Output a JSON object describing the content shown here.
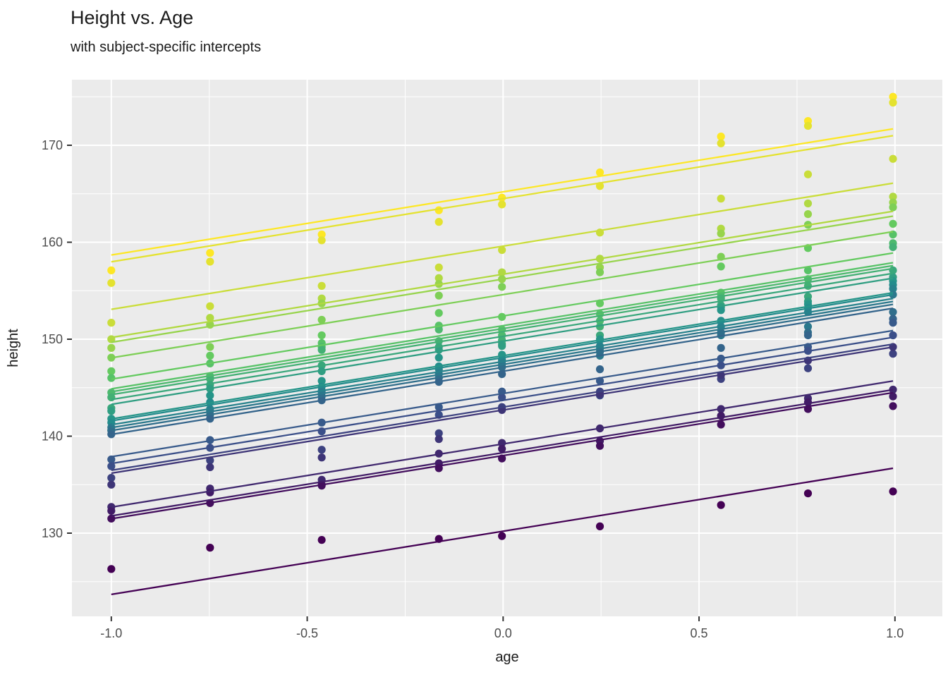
{
  "header": {
    "title": "Height vs. Age",
    "subtitle": "with subject-specific intercepts"
  },
  "panel": {
    "bg_color": "#EBEBEB",
    "grid_color": "#FFFFFF",
    "tick_color": "#333333",
    "tick_label_color": "#4D4D4D"
  },
  "chart_data": {
    "type": "scatter",
    "title": "Height vs. Age",
    "subtitle": "with subject-specific intercepts",
    "xlabel": "age",
    "ylabel": "height",
    "x_tick_labels": [
      "-1.0",
      "-0.5",
      "0.0",
      "0.5",
      "1.0"
    ],
    "x_tick_values": [
      -1.0,
      -0.5,
      0.0,
      0.5,
      1.0
    ],
    "y_tick_labels": [
      "130",
      "140",
      "150",
      "160",
      "170"
    ],
    "y_tick_values": [
      130,
      140,
      150,
      160,
      170
    ],
    "y_minor_values": [
      125,
      135,
      145,
      155,
      165,
      175
    ],
    "x_minor_values": [
      -0.75,
      -0.25,
      0.25,
      0.75
    ],
    "xlim": [
      -1.1,
      1.121
    ],
    "ylim": [
      121.4,
      176.8
    ],
    "grid": true,
    "legend": "none",
    "common_slope": 6.52,
    "line_age_range": [
      -1.0,
      0.995
    ],
    "ages": [
      -1.0,
      -0.748,
      -0.463,
      -0.164,
      -0.003,
      0.247,
      0.556,
      0.778,
      0.995
    ],
    "subjects": [
      {
        "id": 1,
        "color": "#FDE725",
        "intercept": 165.2,
        "heights": [
          157.1,
          158.9,
          160.8,
          163.3,
          164.6,
          167.2,
          170.9,
          172.5,
          175.0
        ]
      },
      {
        "id": 2,
        "color": "#E4E22F",
        "intercept": 164.5,
        "heights": [
          155.8,
          158.0,
          160.2,
          162.1,
          163.9,
          165.8,
          170.2,
          172.0,
          174.4
        ]
      },
      {
        "id": 3,
        "color": "#CADD39",
        "intercept": 159.6,
        "heights": [
          151.7,
          153.4,
          155.5,
          157.4,
          159.2,
          161.0,
          164.5,
          167.0,
          168.6
        ]
      },
      {
        "id": 4,
        "color": "#B1D942",
        "intercept": 156.7,
        "heights": [
          150.0,
          152.2,
          154.2,
          156.3,
          156.9,
          158.3,
          161.4,
          164.0,
          164.7
        ]
      },
      {
        "id": 5,
        "color": "#97D44C",
        "intercept": 156.2,
        "heights": [
          149.1,
          151.5,
          153.7,
          155.7,
          156.2,
          157.4,
          160.9,
          162.9,
          164.1
        ]
      },
      {
        "id": 6,
        "color": "#7ECF56",
        "intercept": 154.6,
        "heights": [
          148.1,
          149.2,
          152.0,
          154.5,
          155.4,
          156.9,
          158.5,
          161.8,
          163.6
        ]
      },
      {
        "id": 7,
        "color": "#64CA60",
        "intercept": 152.4,
        "heights": [
          146.7,
          148.3,
          150.4,
          152.7,
          152.3,
          153.7,
          157.5,
          159.4,
          161.9
        ]
      },
      {
        "id": 8,
        "color": "#57C267",
        "intercept": 151.4,
        "heights": [
          146.0,
          147.5,
          149.6,
          151.4,
          151.0,
          152.6,
          154.8,
          157.1,
          160.8
        ]
      },
      {
        "id": 9,
        "color": "#4DB96E",
        "intercept": 151.1,
        "heights": [
          144.5,
          146.2,
          149.2,
          151.0,
          150.4,
          151.9,
          154.4,
          156.2,
          159.9
        ]
      },
      {
        "id": 10,
        "color": "#43B074",
        "intercept": 150.8,
        "heights": [
          144.0,
          145.9,
          148.9,
          149.8,
          149.9,
          151.3,
          154.2,
          155.5,
          159.5
        ]
      },
      {
        "id": 11,
        "color": "#39A77B",
        "intercept": 150.3,
        "heights": [
          142.9,
          145.3,
          147.3,
          149.2,
          149.5,
          150.4,
          153.5,
          154.4,
          157.1
        ]
      },
      {
        "id": 12,
        "color": "#309E82",
        "intercept": 149.8,
        "heights": [
          142.6,
          144.9,
          146.7,
          148.9,
          149.3,
          149.9,
          153.3,
          153.9,
          156.4
        ]
      },
      {
        "id": 13,
        "color": "#269589",
        "intercept": 148.3,
        "heights": [
          141.8,
          144.2,
          145.7,
          148.1,
          148.4,
          150.0,
          153.0,
          153.6,
          156.0
        ]
      },
      {
        "id": 14,
        "color": "#238C8C",
        "intercept": 148.1,
        "heights": [
          141.4,
          143.5,
          145.1,
          147.2,
          147.9,
          149.0,
          151.9,
          153.2,
          155.6
        ]
      },
      {
        "id": 15,
        "color": "#27828C",
        "intercept": 147.7,
        "heights": [
          140.6,
          142.8,
          144.7,
          146.9,
          147.7,
          149.3,
          151.3,
          152.8,
          155.2
        ]
      },
      {
        "id": 16,
        "color": "#2B788C",
        "intercept": 147.4,
        "heights": [
          140.9,
          142.6,
          144.5,
          146.4,
          147.4,
          148.3,
          150.4,
          151.3,
          154.6
        ]
      },
      {
        "id": 17,
        "color": "#306E8B",
        "intercept": 147.1,
        "heights": [
          140.6,
          142.2,
          144.1,
          146.0,
          147.1,
          148.7,
          150.7,
          150.7,
          152.8
        ]
      },
      {
        "id": 18,
        "color": "#34648B",
        "intercept": 146.7,
        "heights": [
          140.2,
          141.8,
          143.7,
          145.6,
          146.4,
          146.9,
          149.1,
          150.4,
          152.1
        ]
      },
      {
        "id": 19,
        "color": "#385A8B",
        "intercept": 144.4,
        "heights": [
          137.6,
          139.6,
          141.4,
          143.0,
          144.6,
          145.7,
          148.0,
          149.2,
          151.7
        ]
      },
      {
        "id": 20,
        "color": "#3B4F89",
        "intercept": 143.7,
        "heights": [
          136.9,
          138.8,
          140.5,
          142.2,
          144.0,
          144.2,
          147.3,
          148.8,
          150.4
        ]
      },
      {
        "id": 21,
        "color": "#3D4280",
        "intercept": 143.0,
        "heights": [
          135.7,
          137.5,
          138.6,
          140.3,
          143.0,
          144.6,
          145.9,
          147.0,
          148.5
        ]
      },
      {
        "id": 22,
        "color": "#3E3577",
        "intercept": 142.7,
        "heights": [
          135.0,
          136.8,
          137.8,
          139.7,
          142.7,
          144.3,
          146.3,
          147.8,
          149.2
        ]
      },
      {
        "id": 23,
        "color": "#40286E",
        "intercept": 139.2,
        "heights": [
          132.7,
          134.6,
          135.5,
          138.2,
          139.3,
          140.8,
          142.8,
          143.9,
          144.8
        ]
      },
      {
        "id": 24,
        "color": "#411B66",
        "intercept": 138.3,
        "heights": [
          132.3,
          134.2,
          135.0,
          137.2,
          138.7,
          139.5,
          142.1,
          143.5,
          144.1
        ]
      },
      {
        "id": 25,
        "color": "#430E5D",
        "intercept": 138.0,
        "heights": [
          131.5,
          133.1,
          134.9,
          136.7,
          137.7,
          139.0,
          141.2,
          142.8,
          143.1
        ]
      },
      {
        "id": 26,
        "color": "#440154",
        "intercept": 130.2,
        "heights": [
          126.3,
          128.5,
          129.3,
          129.4,
          129.7,
          130.7,
          132.9,
          134.1,
          134.3
        ]
      }
    ]
  }
}
